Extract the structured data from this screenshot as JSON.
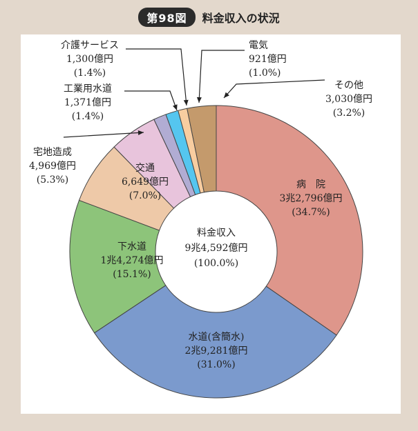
{
  "header": {
    "figure_number": "第98図",
    "title": "料金収入の状況"
  },
  "colors": {
    "page_background": "#e3d8cc",
    "panel_background": "#ffffff",
    "leader_line": "#222222"
  },
  "chart_data": {
    "type": "donut",
    "title": "料金収入の状況",
    "center_label": {
      "name": "料金収入",
      "amount": "9兆4,592億円",
      "percent": "(100.0%)"
    },
    "unit": "億円",
    "total": 945920000,
    "start_angle_deg": 0,
    "direction": "clockwise",
    "slices": [
      {
        "name": "病　院",
        "amount": "3兆2,796億円",
        "percent": "(34.7%)",
        "value": 34.7,
        "color": "#de968b"
      },
      {
        "name": "水道(含簡水)",
        "amount": "2兆9,281億円",
        "percent": "(31.0%)",
        "value": 31.0,
        "color": "#7b9acd"
      },
      {
        "name": "下水道",
        "amount": "1兆4,274億円",
        "percent": "(15.1%)",
        "value": 15.1,
        "color": "#8dc47a"
      },
      {
        "name": "交通",
        "amount": "6,649億円",
        "percent": "(7.0%)",
        "value": 7.0,
        "color": "#eec9a8"
      },
      {
        "name": "宅地造成",
        "amount": "4,969億円",
        "percent": "(5.3%)",
        "value": 5.3,
        "color": "#e8c4dc"
      },
      {
        "name": "工業用水道",
        "amount": "1,371億円",
        "percent": "(1.4%)",
        "value": 1.4,
        "color": "#b1acd3"
      },
      {
        "name": "介護サービス",
        "amount": "1,300億円",
        "percent": "(1.4%)",
        "value": 1.4,
        "color": "#55c6ef"
      },
      {
        "name": "電気",
        "amount": "921億円",
        "percent": "(1.0%)",
        "value": 1.0,
        "color": "#f8cda0"
      },
      {
        "name": "その他",
        "amount": "3,030億円",
        "percent": "(3.2%)",
        "value": 3.2,
        "color": "#c49a6c"
      }
    ]
  }
}
